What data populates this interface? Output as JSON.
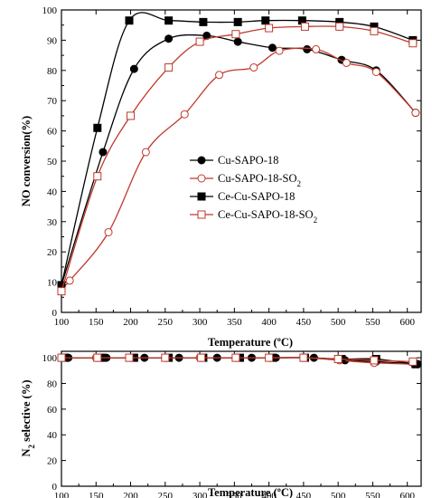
{
  "chart_data": [
    {
      "type": "line",
      "xlabel": "Temperature (ºC)",
      "ylabel": "NO conversion(%)",
      "xlim": [
        100,
        620
      ],
      "ylim": [
        0,
        100
      ],
      "xticks": [
        100,
        150,
        200,
        250,
        300,
        350,
        400,
        450,
        500,
        550,
        600
      ],
      "yticks": [
        0,
        10,
        20,
        30,
        40,
        50,
        60,
        70,
        80,
        90,
        100
      ],
      "grid": false,
      "legend_position": "center-right",
      "series": [
        {
          "name": "Cu-SAPO-18",
          "marker": "circle",
          "filled": true,
          "color": "#000000",
          "x": [
            100,
            160,
            205,
            255,
            310,
            355,
            405,
            455,
            505,
            555,
            612
          ],
          "y": [
            9,
            53,
            80.5,
            90.5,
            91.5,
            89.5,
            87.5,
            87,
            83.5,
            80,
            66
          ]
        },
        {
          "name": "Cu-SAPO-18-SO",
          "name_sub": "2",
          "marker": "circle",
          "filled": false,
          "color": "#c0392b",
          "x": [
            100,
            112,
            168,
            222,
            278,
            328,
            378,
            415,
            468,
            512,
            555,
            612
          ],
          "y": [
            8,
            10.5,
            26.5,
            53,
            65.5,
            78.5,
            81,
            86.5,
            87,
            82.5,
            79.5,
            66
          ]
        },
        {
          "name": "Ce-Cu-SAPO-18",
          "marker": "square",
          "filled": true,
          "color": "#000000",
          "x": [
            100,
            152,
            198,
            255,
            305,
            355,
            395,
            448,
            502,
            552,
            608
          ],
          "y": [
            9,
            61,
            96.5,
            96.5,
            96,
            96,
            96.5,
            96.5,
            96,
            94.5,
            90
          ]
        },
        {
          "name": "Ce-Cu-SAPO-18-SO",
          "name_sub": "2",
          "marker": "square",
          "filled": false,
          "color": "#c0392b",
          "x": [
            100,
            152,
            200,
            255,
            300,
            352,
            400,
            452,
            502,
            552,
            608
          ],
          "y": [
            7,
            45,
            65,
            81,
            89.5,
            92,
            94,
            94.5,
            94.5,
            93,
            89
          ]
        }
      ]
    },
    {
      "type": "line",
      "xlabel": "Temperature (ºC)",
      "ylabel": "N",
      "ylabel_sub": "2",
      "ylabel_rest": " selective (%)",
      "xlim": [
        100,
        620
      ],
      "ylim": [
        0,
        105
      ],
      "xticks": [
        100,
        150,
        200,
        250,
        300,
        350,
        400,
        450,
        500,
        550,
        600
      ],
      "yticks": [
        0,
        20,
        40,
        60,
        80,
        100
      ],
      "grid": false,
      "series": [
        {
          "name": "Cu-SAPO-18",
          "marker": "circle",
          "filled": true,
          "color": "#000000",
          "x": [
            110,
            165,
            220,
            270,
            325,
            375,
            410,
            465,
            510,
            555,
            615
          ],
          "y": [
            100,
            100,
            100,
            100,
            100,
            100,
            100,
            100,
            98,
            97,
            95
          ]
        },
        {
          "name": "Cu-SAPO-18-SO",
          "name_sub": "2",
          "marker": "circle",
          "filled": false,
          "color": "#c0392b",
          "x": [
            100,
            150,
            200,
            252,
            300,
            352,
            402,
            452,
            502,
            552,
            610
          ],
          "y": [
            100,
            100,
            100,
            100,
            100,
            100,
            100,
            100,
            98,
            96,
            95
          ]
        },
        {
          "name": "Ce-Cu-SAPO-18",
          "marker": "square",
          "filled": true,
          "color": "#000000",
          "x": [
            105,
            158,
            205,
            255,
            305,
            358,
            405,
            452,
            505,
            555,
            612
          ],
          "y": [
            100,
            100,
            100,
            100,
            100,
            100,
            100,
            100,
            99,
            99,
            95
          ]
        },
        {
          "name": "Ce-Cu-SAPO-18-SO",
          "name_sub": "2",
          "marker": "square",
          "filled": false,
          "color": "#c0392b",
          "x": [
            100,
            152,
            198,
            250,
            302,
            352,
            400,
            450,
            500,
            552,
            608
          ],
          "y": [
            100,
            100,
            100,
            100,
            100,
            100,
            100,
            100,
            99,
            98,
            97
          ]
        }
      ]
    }
  ]
}
